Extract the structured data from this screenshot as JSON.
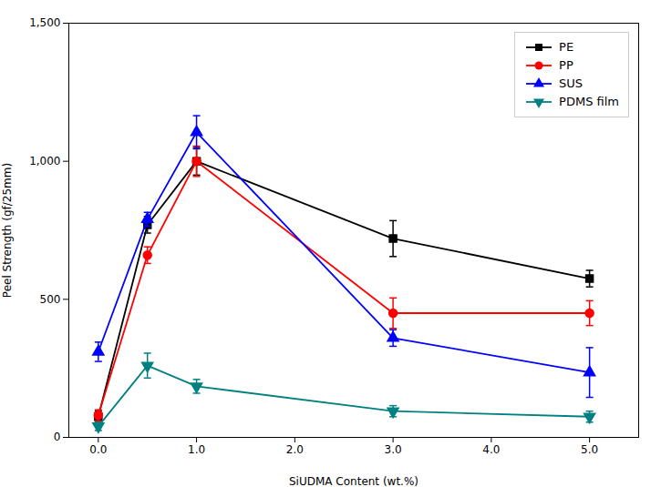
{
  "chart_data": {
    "type": "line",
    "x": [
      0,
      0.5,
      1,
      3,
      5
    ],
    "series": [
      {
        "name": "PE",
        "color": "#000000",
        "marker": "square",
        "values": [
          75,
          770,
          1000,
          720,
          575
        ],
        "yerr": [
          20,
          30,
          50,
          65,
          30
        ]
      },
      {
        "name": "PP",
        "color": "#ff0000",
        "marker": "circle",
        "values": [
          80,
          660,
          1000,
          450,
          450
        ],
        "yerr": [
          20,
          30,
          55,
          55,
          45
        ]
      },
      {
        "name": "SUS",
        "color": "#0000ff",
        "marker": "triangle-up",
        "values": [
          310,
          790,
          1105,
          360,
          235
        ],
        "yerr": [
          35,
          25,
          60,
          30,
          90
        ]
      },
      {
        "name": "PDMS film",
        "color": "#008080",
        "marker": "triangle-down",
        "values": [
          40,
          260,
          185,
          95,
          75
        ],
        "yerr": [
          15,
          45,
          25,
          20,
          20
        ]
      }
    ],
    "xlabel": "SiUDMA Content (wt.%)",
    "ylabel": "Peel Strength (gf/25mm)",
    "xlim": [
      -0.3,
      5.5
    ],
    "ylim": [
      0,
      1500
    ],
    "xticks": [
      0,
      1,
      2,
      3,
      4,
      5
    ],
    "yticks": [
      0,
      500,
      1000,
      1500
    ],
    "grid": false,
    "legend": "upper right"
  }
}
